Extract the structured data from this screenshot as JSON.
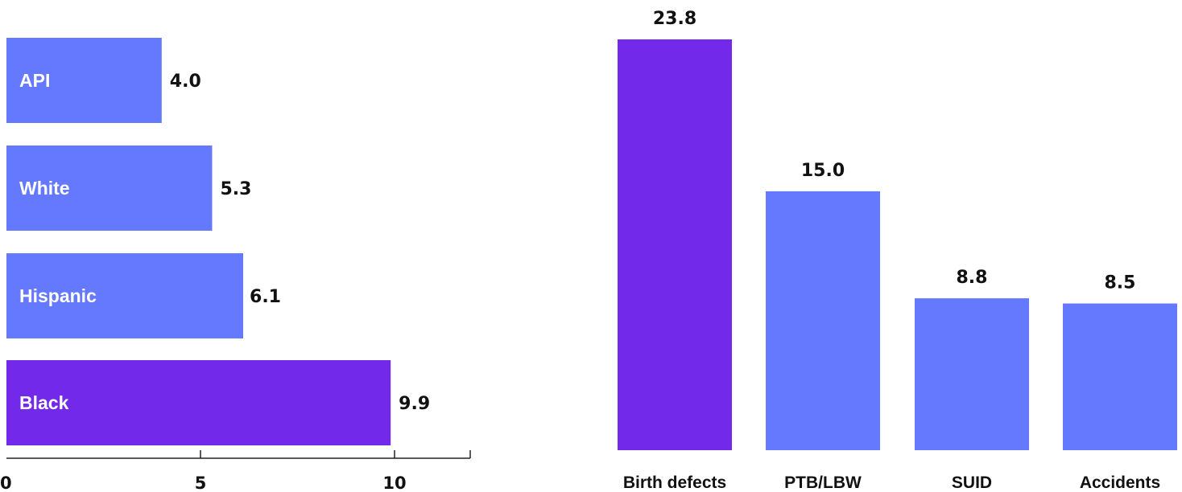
{
  "colors": {
    "highlight": "#7229EA",
    "default": "#6479FE",
    "text": "#111111",
    "inbar_text": "#FFFFFF",
    "axis": "#222222"
  },
  "chart_data": [
    {
      "type": "bar",
      "orientation": "horizontal",
      "categories": [
        "API",
        "White",
        "Hispanic",
        "Black"
      ],
      "values": [
        4.0,
        5.3,
        6.1,
        9.9
      ],
      "value_labels": [
        "4.0",
        "5.3",
        "6.1",
        "9.9"
      ],
      "highlighted": [
        "Black"
      ],
      "xlim": [
        0,
        12
      ],
      "xticks": [
        0,
        5,
        10
      ],
      "xtick_labels": [
        "0",
        "5",
        "10"
      ],
      "grid": false,
      "legend": "none"
    },
    {
      "type": "bar",
      "orientation": "vertical",
      "categories": [
        "Birth defects",
        "PTB/LBW",
        "SUID",
        "Accidents"
      ],
      "values": [
        23.8,
        15.0,
        8.8,
        8.5
      ],
      "value_labels": [
        "23.8",
        "15.0",
        "8.8",
        "8.5"
      ],
      "highlighted": [
        "Birth defects"
      ],
      "ylim": [
        0,
        23.8
      ],
      "grid": false,
      "legend": "none"
    }
  ]
}
